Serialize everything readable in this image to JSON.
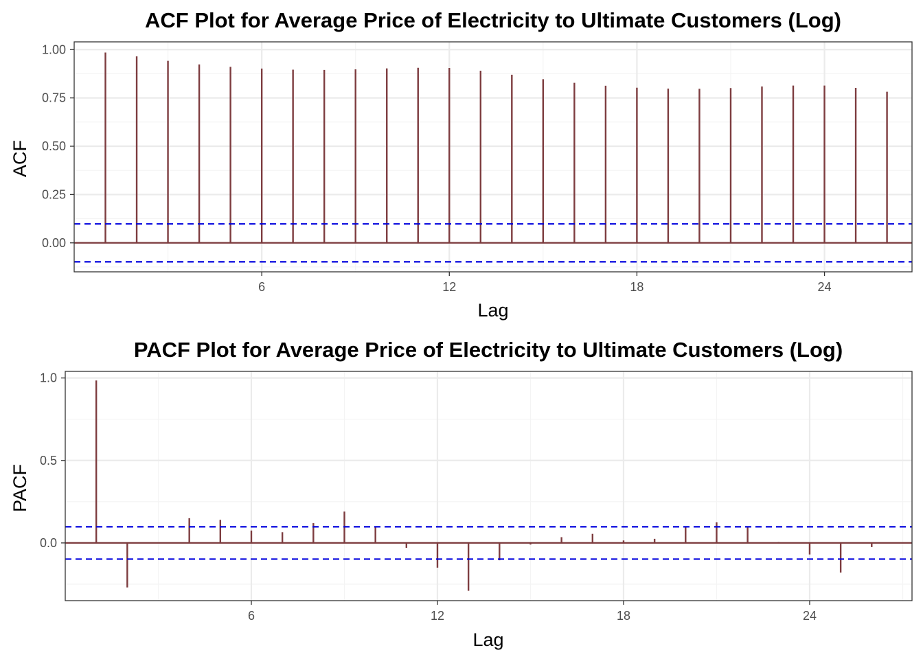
{
  "chart_data": [
    {
      "type": "bar",
      "title": "ACF Plot for Average Price of Electricity to Ultimate Customers (Log)",
      "xlabel": "Lag",
      "ylabel": "ACF",
      "xlim": [
        0,
        26.8
      ],
      "ylim": [
        -0.15,
        1.04
      ],
      "x_ticks": [
        6,
        12,
        18,
        24
      ],
      "y_ticks": [
        0.0,
        0.25,
        0.5,
        0.75,
        1.0
      ],
      "y_tick_labels": [
        "0.00",
        "0.25",
        "0.50",
        "0.75",
        "1.00"
      ],
      "grid": true,
      "confidence_bound": 0.098,
      "colors": {
        "bars": "#7d3c3f",
        "bounds": "#0000dd",
        "grid": "#ebebeb",
        "zero_line": "#7d3c3f"
      },
      "lags": [
        1,
        2,
        3,
        4,
        5,
        6,
        7,
        8,
        9,
        10,
        11,
        12,
        13,
        14,
        15,
        16,
        17,
        18,
        19,
        20,
        21,
        22,
        23,
        24,
        25,
        26
      ],
      "values": [
        0.985,
        0.965,
        0.942,
        0.923,
        0.911,
        0.902,
        0.896,
        0.895,
        0.898,
        0.903,
        0.906,
        0.905,
        0.891,
        0.87,
        0.847,
        0.828,
        0.813,
        0.803,
        0.798,
        0.797,
        0.801,
        0.809,
        0.814,
        0.814,
        0.802,
        0.782
      ]
    },
    {
      "type": "bar",
      "title": "PACF Plot for Average Price of Electricity to Ultimate Customers (Log)",
      "xlabel": "Lag",
      "ylabel": "PACF",
      "xlim": [
        0,
        27.3
      ],
      "ylim": [
        -0.35,
        1.04
      ],
      "x_ticks": [
        6,
        12,
        18,
        24
      ],
      "y_ticks": [
        0.0,
        0.5,
        1.0
      ],
      "y_tick_labels": [
        "0.0",
        "0.5",
        "1.0"
      ],
      "grid": true,
      "confidence_bound": 0.098,
      "colors": {
        "bars": "#7d3c3f",
        "bounds": "#0000dd",
        "grid": "#ebebeb",
        "zero_line": "#7d3c3f"
      },
      "lags": [
        1,
        2,
        3,
        4,
        5,
        6,
        7,
        8,
        9,
        10,
        11,
        12,
        13,
        14,
        15,
        16,
        17,
        18,
        19,
        20,
        21,
        22,
        23,
        24,
        25,
        26
      ],
      "values": [
        0.985,
        -0.27,
        0.0,
        0.15,
        0.14,
        0.075,
        0.065,
        0.12,
        0.19,
        0.095,
        -0.03,
        -0.15,
        -0.29,
        -0.105,
        -0.01,
        0.035,
        0.055,
        0.015,
        0.025,
        0.095,
        0.125,
        0.095,
        0.005,
        -0.07,
        -0.18,
        -0.025
      ]
    }
  ]
}
